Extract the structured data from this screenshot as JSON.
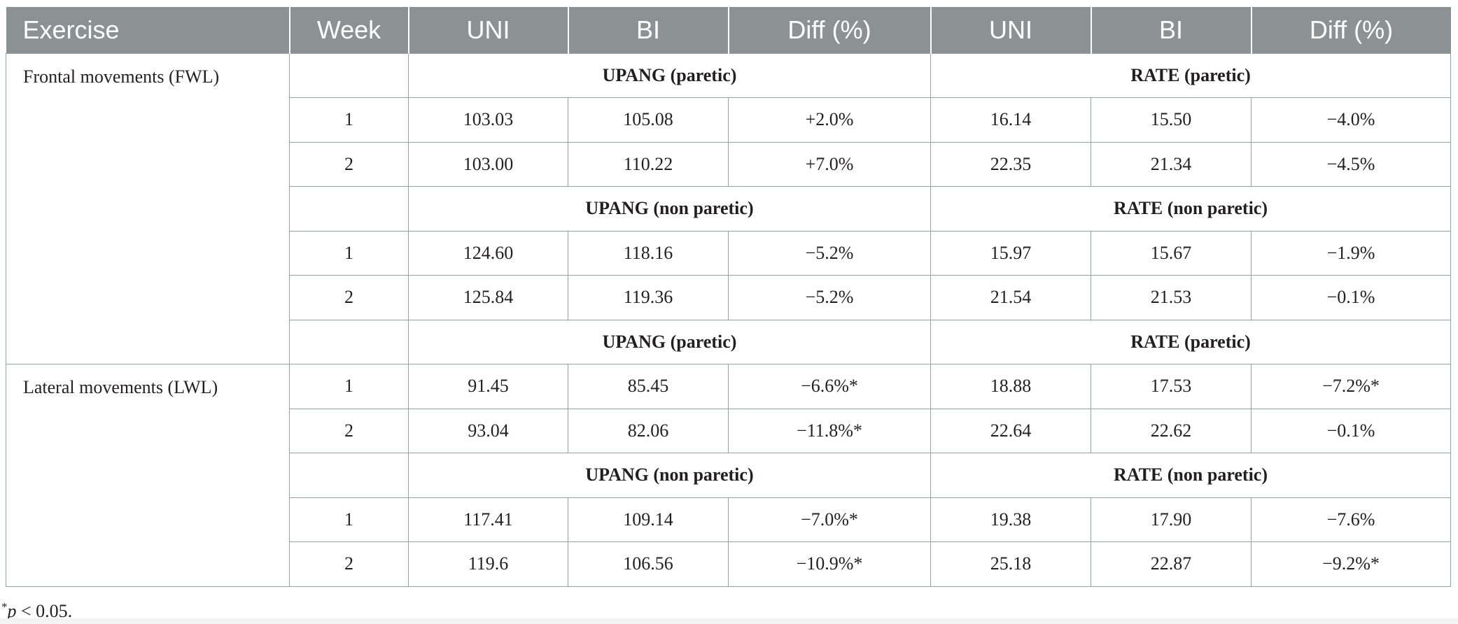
{
  "headers": [
    "Exercise",
    "Week",
    "UNI",
    "BI",
    "Diff (%)",
    "UNI",
    "BI",
    "Diff (%)"
  ],
  "sections": [
    {
      "exercise": "Frontal movements (FWL)",
      "blocks": [
        {
          "left_label": "UPANG (paretic)",
          "right_label": "RATE (paretic)",
          "rows": [
            {
              "week": "1",
              "uni1": "103.03",
              "bi1": "105.08",
              "diff1": "+2.0%",
              "uni2": "16.14",
              "bi2": "15.50",
              "diff2": "−4.0%"
            },
            {
              "week": "2",
              "uni1": "103.00",
              "bi1": "110.22",
              "diff1": "+7.0%",
              "uni2": "22.35",
              "bi2": "21.34",
              "diff2": "−4.5%"
            }
          ]
        },
        {
          "left_label": "UPANG (non paretic)",
          "right_label": "RATE (non paretic)",
          "rows": [
            {
              "week": "1",
              "uni1": "124.60",
              "bi1": "118.16",
              "diff1": "−5.2%",
              "uni2": "15.97",
              "bi2": "15.67",
              "diff2": "−1.9%"
            },
            {
              "week": "2",
              "uni1": "125.84",
              "bi1": "119.36",
              "diff1": "−5.2%",
              "uni2": "21.54",
              "bi2": "21.53",
              "diff2": "−0.1%"
            }
          ]
        },
        {
          "left_label": "UPANG (paretic)",
          "right_label": "RATE (paretic)",
          "rows": []
        }
      ]
    },
    {
      "exercise": "Lateral movements (LWL)",
      "blocks": [
        {
          "left_label": "",
          "right_label": "",
          "rows": [
            {
              "week": "1",
              "uni1": "91.45",
              "bi1": "85.45",
              "diff1": "−6.6%*",
              "uni2": "18.88",
              "bi2": "17.53",
              "diff2": "−7.2%*"
            },
            {
              "week": "2",
              "uni1": "93.04",
              "bi1": "82.06",
              "diff1": "−11.8%*",
              "uni2": "22.64",
              "bi2": "22.62",
              "diff2": "−0.1%"
            }
          ]
        },
        {
          "left_label": "UPANG (non paretic)",
          "right_label": "RATE (non paretic)",
          "rows": [
            {
              "week": "1",
              "uni1": "117.41",
              "bi1": "109.14",
              "diff1": "−7.0%*",
              "uni2": "19.38",
              "bi2": "17.90",
              "diff2": "−7.6%"
            },
            {
              "week": "2",
              "uni1": "119.6",
              "bi1": "106.56",
              "diff1": "−10.9%*",
              "uni2": "25.18",
              "bi2": "22.87",
              "diff2": "−9.2%*"
            }
          ]
        }
      ]
    }
  ],
  "footnote": {
    "marker": "*",
    "p": "p",
    "text": " < 0.05."
  }
}
